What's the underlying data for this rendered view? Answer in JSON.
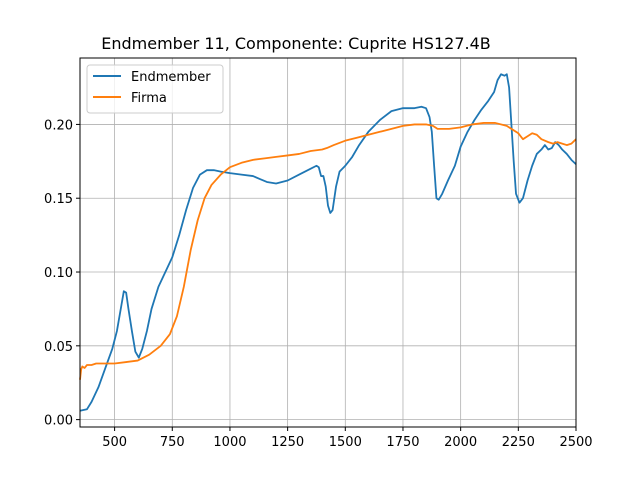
{
  "chart_data": {
    "type": "line",
    "title": "Endmember 11, Componente: Cuprite HS127.4B",
    "xlabel": "",
    "ylabel": "",
    "xlim": [
      350,
      2500
    ],
    "ylim": [
      -0.005,
      0.245
    ],
    "xticks": [
      500,
      750,
      1000,
      1250,
      1500,
      1750,
      2000,
      2250,
      2500
    ],
    "yticks": [
      0.0,
      0.05,
      0.1,
      0.15,
      0.2
    ],
    "ytick_labels": [
      "0.00",
      "0.05",
      "0.10",
      "0.15",
      "0.20"
    ],
    "grid": true,
    "legend_position": "top-left",
    "series": [
      {
        "name": "Endmember",
        "color": "#1f77b4",
        "points": [
          [
            350,
            0.006
          ],
          [
            380,
            0.007
          ],
          [
            400,
            0.012
          ],
          [
            430,
            0.022
          ],
          [
            460,
            0.035
          ],
          [
            490,
            0.048
          ],
          [
            510,
            0.06
          ],
          [
            530,
            0.078
          ],
          [
            540,
            0.087
          ],
          [
            550,
            0.086
          ],
          [
            560,
            0.075
          ],
          [
            575,
            0.06
          ],
          [
            590,
            0.046
          ],
          [
            605,
            0.042
          ],
          [
            620,
            0.048
          ],
          [
            640,
            0.06
          ],
          [
            660,
            0.075
          ],
          [
            690,
            0.09
          ],
          [
            720,
            0.1
          ],
          [
            750,
            0.11
          ],
          [
            780,
            0.125
          ],
          [
            810,
            0.142
          ],
          [
            840,
            0.157
          ],
          [
            870,
            0.166
          ],
          [
            900,
            0.169
          ],
          [
            930,
            0.169
          ],
          [
            960,
            0.168
          ],
          [
            1000,
            0.167
          ],
          [
            1050,
            0.166
          ],
          [
            1100,
            0.165
          ],
          [
            1130,
            0.163
          ],
          [
            1160,
            0.161
          ],
          [
            1200,
            0.16
          ],
          [
            1250,
            0.162
          ],
          [
            1300,
            0.166
          ],
          [
            1350,
            0.17
          ],
          [
            1375,
            0.172
          ],
          [
            1385,
            0.171
          ],
          [
            1395,
            0.165
          ],
          [
            1405,
            0.165
          ],
          [
            1415,
            0.158
          ],
          [
            1425,
            0.145
          ],
          [
            1435,
            0.14
          ],
          [
            1445,
            0.142
          ],
          [
            1460,
            0.158
          ],
          [
            1475,
            0.168
          ],
          [
            1500,
            0.172
          ],
          [
            1530,
            0.178
          ],
          [
            1560,
            0.186
          ],
          [
            1600,
            0.195
          ],
          [
            1650,
            0.203
          ],
          [
            1700,
            0.209
          ],
          [
            1750,
            0.211
          ],
          [
            1800,
            0.211
          ],
          [
            1830,
            0.212
          ],
          [
            1850,
            0.211
          ],
          [
            1865,
            0.205
          ],
          [
            1875,
            0.195
          ],
          [
            1885,
            0.172
          ],
          [
            1895,
            0.15
          ],
          [
            1905,
            0.149
          ],
          [
            1920,
            0.153
          ],
          [
            1945,
            0.162
          ],
          [
            1975,
            0.172
          ],
          [
            2000,
            0.185
          ],
          [
            2030,
            0.195
          ],
          [
            2060,
            0.203
          ],
          [
            2090,
            0.21
          ],
          [
            2120,
            0.216
          ],
          [
            2145,
            0.222
          ],
          [
            2160,
            0.23
          ],
          [
            2175,
            0.234
          ],
          [
            2190,
            0.233
          ],
          [
            2200,
            0.234
          ],
          [
            2210,
            0.225
          ],
          [
            2220,
            0.2
          ],
          [
            2230,
            0.175
          ],
          [
            2240,
            0.153
          ],
          [
            2255,
            0.147
          ],
          [
            2270,
            0.15
          ],
          [
            2290,
            0.162
          ],
          [
            2310,
            0.172
          ],
          [
            2330,
            0.18
          ],
          [
            2350,
            0.183
          ],
          [
            2365,
            0.186
          ],
          [
            2380,
            0.183
          ],
          [
            2395,
            0.184
          ],
          [
            2410,
            0.188
          ],
          [
            2425,
            0.186
          ],
          [
            2440,
            0.183
          ],
          [
            2460,
            0.18
          ],
          [
            2480,
            0.176
          ],
          [
            2500,
            0.173
          ]
        ]
      },
      {
        "name": "Firma",
        "color": "#ff7f0e",
        "points": [
          [
            350,
            0.027
          ],
          [
            355,
            0.034
          ],
          [
            360,
            0.036
          ],
          [
            370,
            0.035
          ],
          [
            380,
            0.037
          ],
          [
            400,
            0.037
          ],
          [
            420,
            0.038
          ],
          [
            450,
            0.038
          ],
          [
            500,
            0.038
          ],
          [
            550,
            0.039
          ],
          [
            600,
            0.04
          ],
          [
            650,
            0.044
          ],
          [
            700,
            0.05
          ],
          [
            740,
            0.058
          ],
          [
            770,
            0.07
          ],
          [
            800,
            0.09
          ],
          [
            830,
            0.115
          ],
          [
            860,
            0.135
          ],
          [
            890,
            0.15
          ],
          [
            920,
            0.159
          ],
          [
            960,
            0.166
          ],
          [
            1000,
            0.171
          ],
          [
            1050,
            0.174
          ],
          [
            1100,
            0.176
          ],
          [
            1150,
            0.177
          ],
          [
            1200,
            0.178
          ],
          [
            1250,
            0.179
          ],
          [
            1300,
            0.18
          ],
          [
            1350,
            0.182
          ],
          [
            1400,
            0.183
          ],
          [
            1420,
            0.184
          ],
          [
            1450,
            0.186
          ],
          [
            1500,
            0.189
          ],
          [
            1550,
            0.191
          ],
          [
            1600,
            0.193
          ],
          [
            1650,
            0.195
          ],
          [
            1700,
            0.197
          ],
          [
            1750,
            0.199
          ],
          [
            1800,
            0.2
          ],
          [
            1850,
            0.2
          ],
          [
            1880,
            0.199
          ],
          [
            1900,
            0.197
          ],
          [
            1950,
            0.197
          ],
          [
            2000,
            0.198
          ],
          [
            2050,
            0.2
          ],
          [
            2100,
            0.201
          ],
          [
            2150,
            0.201
          ],
          [
            2200,
            0.199
          ],
          [
            2230,
            0.196
          ],
          [
            2250,
            0.194
          ],
          [
            2270,
            0.19
          ],
          [
            2290,
            0.192
          ],
          [
            2310,
            0.194
          ],
          [
            2330,
            0.193
          ],
          [
            2350,
            0.19
          ],
          [
            2380,
            0.188
          ],
          [
            2400,
            0.187
          ],
          [
            2420,
            0.188
          ],
          [
            2440,
            0.187
          ],
          [
            2460,
            0.186
          ],
          [
            2480,
            0.187
          ],
          [
            2500,
            0.19
          ]
        ]
      }
    ]
  }
}
